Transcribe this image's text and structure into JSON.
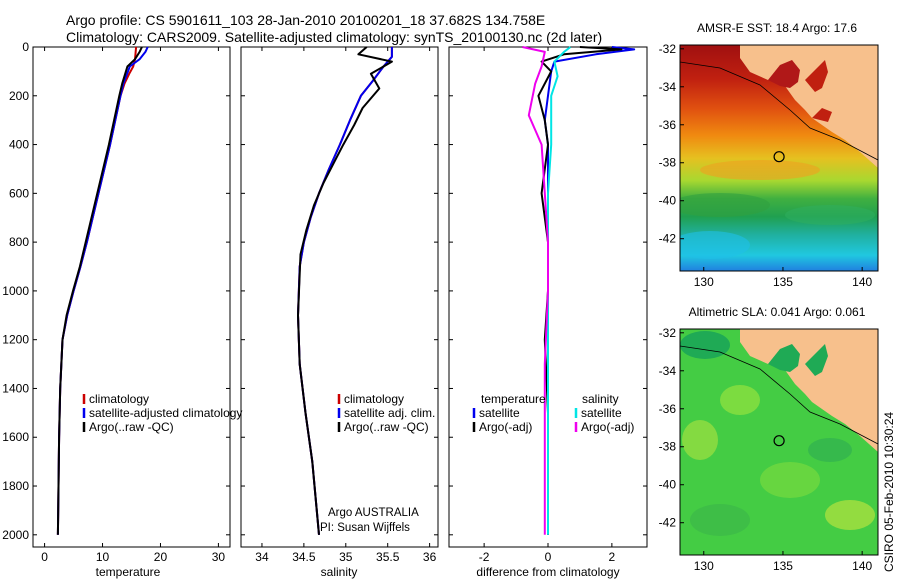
{
  "header": {
    "line1": "Argo profile: CS 5901611_103 28-Jan-2010 20100201_18 37.682S 134.758E",
    "line2": "Climatology: CARS2009. Satellite-adjusted climatology: synTS_20100130.nc (2d later)"
  },
  "colors": {
    "climatology": "#cc0000",
    "satellite": "#0000ee",
    "argo": "#000000",
    "sat_salinity": "#00e5e5",
    "argo_salinity": "#ee00ee"
  },
  "chart_data": [
    {
      "type": "line",
      "id": "temperature",
      "xlabel": "temperature",
      "xlim": [
        -2,
        32
      ],
      "ylim": [
        0,
        2050
      ],
      "xticks": [
        0,
        10,
        20,
        30
      ],
      "yticks": [
        0,
        200,
        400,
        600,
        800,
        1000,
        1200,
        1400,
        1600,
        1800,
        2000
      ],
      "y_reversed": true,
      "legend": [
        "climatology",
        "satellite-adjusted climatology",
        "Argo(..raw -QC)"
      ],
      "series": [
        {
          "name": "climatology",
          "color": "climatology",
          "x": [
            15.8,
            15.6,
            15.3,
            14.6,
            13.8,
            13.1,
            12.2,
            11.3,
            10.3,
            9.3,
            8.3,
            7.3,
            6.2,
            5.0,
            3.9,
            3.1,
            2.7,
            2.5,
            2.4,
            2.3
          ],
          "y": [
            0,
            50,
            80,
            110,
            150,
            200,
            300,
            400,
            500,
            600,
            700,
            800,
            900,
            1000,
            1100,
            1200,
            1400,
            1600,
            1800,
            2000
          ]
        },
        {
          "name": "satellite-adjusted climatology",
          "color": "satellite",
          "x": [
            17.8,
            17.4,
            16.4,
            14.7,
            13.6,
            13.1,
            12.2,
            11.3,
            10.3,
            9.3,
            8.3,
            7.3,
            6.2,
            5.0,
            3.9,
            3.1,
            2.7,
            2.5,
            2.4,
            2.3
          ],
          "y": [
            0,
            20,
            50,
            80,
            150,
            200,
            300,
            400,
            500,
            600,
            700,
            800,
            900,
            1000,
            1100,
            1200,
            1400,
            1600,
            1800,
            2000
          ]
        },
        {
          "name": "Argo(..raw -QC)",
          "color": "argo",
          "x": [
            16.8,
            16.4,
            15.6,
            14.3,
            13.4,
            12.9,
            12.0,
            11.1,
            10.1,
            9.1,
            8.1,
            7.1,
            6.1,
            4.9,
            3.8,
            3.1,
            2.7,
            2.5,
            2.4,
            2.3
          ],
          "y": [
            0,
            20,
            50,
            80,
            150,
            200,
            300,
            400,
            500,
            600,
            700,
            800,
            900,
            1000,
            1100,
            1200,
            1400,
            1600,
            1800,
            2000
          ]
        }
      ]
    },
    {
      "type": "line",
      "id": "salinity",
      "xlabel": "salinity",
      "xlim": [
        33.75,
        36.1
      ],
      "ylim": [
        0,
        2050
      ],
      "xticks": [
        34,
        34.5,
        35,
        35.5,
        36
      ],
      "y_reversed": true,
      "legend": [
        "climatology",
        "satellite adj. clim.",
        "Argo(..raw -QC)"
      ],
      "annotations": [
        "Argo AUSTRALIA",
        "PI: Susan Wijffels"
      ],
      "series": [
        {
          "name": "climatology",
          "color": "climatology",
          "x": [
            35.55,
            35.55,
            35.45,
            35.32,
            35.18,
            35.05,
            34.93,
            34.8,
            34.68,
            34.58,
            34.5,
            34.45,
            34.43,
            34.45,
            34.52,
            34.6,
            34.68
          ],
          "y": [
            0,
            40,
            80,
            140,
            200,
            300,
            400,
            500,
            600,
            700,
            800,
            900,
            1100,
            1300,
            1500,
            1700,
            2000
          ]
        },
        {
          "name": "satellite adj. clim.",
          "color": "satellite",
          "x": [
            35.55,
            35.55,
            35.45,
            35.32,
            35.18,
            35.05,
            34.93,
            34.8,
            34.68,
            34.58,
            34.5,
            34.45,
            34.43,
            34.45,
            34.52,
            34.6,
            34.68
          ],
          "y": [
            0,
            40,
            80,
            140,
            200,
            300,
            400,
            500,
            600,
            700,
            800,
            900,
            1100,
            1300,
            1500,
            1700,
            2000
          ]
        },
        {
          "name": "Argo(..raw -QC)",
          "color": "argo",
          "x": [
            35.25,
            35.15,
            35.55,
            35.3,
            35.4,
            35.2,
            35.1,
            34.97,
            34.85,
            34.73,
            34.62,
            34.53,
            34.46,
            34.43,
            34.45,
            34.52,
            34.6,
            34.68
          ],
          "y": [
            0,
            30,
            60,
            110,
            170,
            250,
            320,
            400,
            480,
            560,
            650,
            750,
            850,
            1100,
            1300,
            1500,
            1700,
            2000
          ]
        }
      ]
    },
    {
      "type": "line",
      "id": "difference",
      "xlabel": "difference from climatology",
      "xlim": [
        -3.1,
        3.1
      ],
      "ylim": [
        0,
        2050
      ],
      "xticks": [
        -2,
        0,
        2
      ],
      "y_reversed": true,
      "legend_temperature_header": "temperature",
      "legend_salinity_header": "salinity",
      "legend": [
        "satellite",
        "Argo(-adj)",
        "satellite",
        "Argo(-adj)"
      ],
      "series": [
        {
          "name": "temperature satellite",
          "color": "satellite",
          "x": [
            2.0,
            2.7,
            1.5,
            0.2,
            0.1,
            0.0,
            -0.1,
            0.0,
            0.0,
            0.0,
            0.0,
            0.0,
            0.0,
            0.0
          ],
          "y": [
            0,
            10,
            30,
            60,
            100,
            200,
            300,
            400,
            600,
            800,
            1000,
            1200,
            1500,
            2000
          ]
        },
        {
          "name": "temperature Argo(-adj)",
          "color": "argo",
          "x": [
            1.0,
            2.3,
            0.5,
            -0.2,
            0.1,
            -0.3,
            -0.1,
            0.0,
            -0.2,
            0.0,
            0.0,
            -0.1,
            0.0,
            0.0
          ],
          "y": [
            0,
            10,
            30,
            60,
            100,
            200,
            300,
            400,
            600,
            800,
            1000,
            1200,
            1500,
            2000
          ]
        },
        {
          "name": "salinity satellite",
          "color": "sat_salinity",
          "x": [
            0.7,
            0.5,
            0.2,
            0.3,
            0.1,
            0.1,
            0.0,
            0.0,
            0.0,
            0.0,
            0.0,
            0.0
          ],
          "y": [
            0,
            20,
            60,
            120,
            200,
            400,
            600,
            800,
            1000,
            1300,
            1600,
            2000
          ]
        },
        {
          "name": "salinity Argo(-adj)",
          "color": "argo_salinity",
          "x": [
            -0.8,
            -0.1,
            -0.2,
            -0.4,
            -0.6,
            -0.2,
            -0.1,
            0.0,
            0.0,
            -0.1,
            -0.1,
            -0.1
          ],
          "y": [
            0,
            20,
            80,
            150,
            280,
            400,
            600,
            800,
            1000,
            1300,
            1600,
            2000
          ]
        }
      ]
    },
    {
      "type": "heatmap",
      "id": "sst-map",
      "title": "AMSR-E SST: 18.4  Argo: 17.6",
      "xlim": [
        128.5,
        141
      ],
      "ylim": [
        -43.7,
        -31.8
      ],
      "xticks": [
        130,
        135,
        140
      ],
      "yticks": [
        -32,
        -34,
        -36,
        -38,
        -40,
        -42
      ],
      "marker": {
        "lon": 134.758,
        "lat": -37.682
      }
    },
    {
      "type": "heatmap",
      "id": "sla-map",
      "title": "Altimetric SLA: 0.041  Argo: 0.061",
      "xlim": [
        128.5,
        141
      ],
      "ylim": [
        -43.7,
        -31.8
      ],
      "xticks": [
        130,
        135,
        140
      ],
      "yticks": [
        -32,
        -34,
        -36,
        -38,
        -40,
        -42
      ],
      "marker": {
        "lon": 134.758,
        "lat": -37.682
      }
    }
  ],
  "credit": "CSIRO 05-Feb-2010 10:30:24"
}
